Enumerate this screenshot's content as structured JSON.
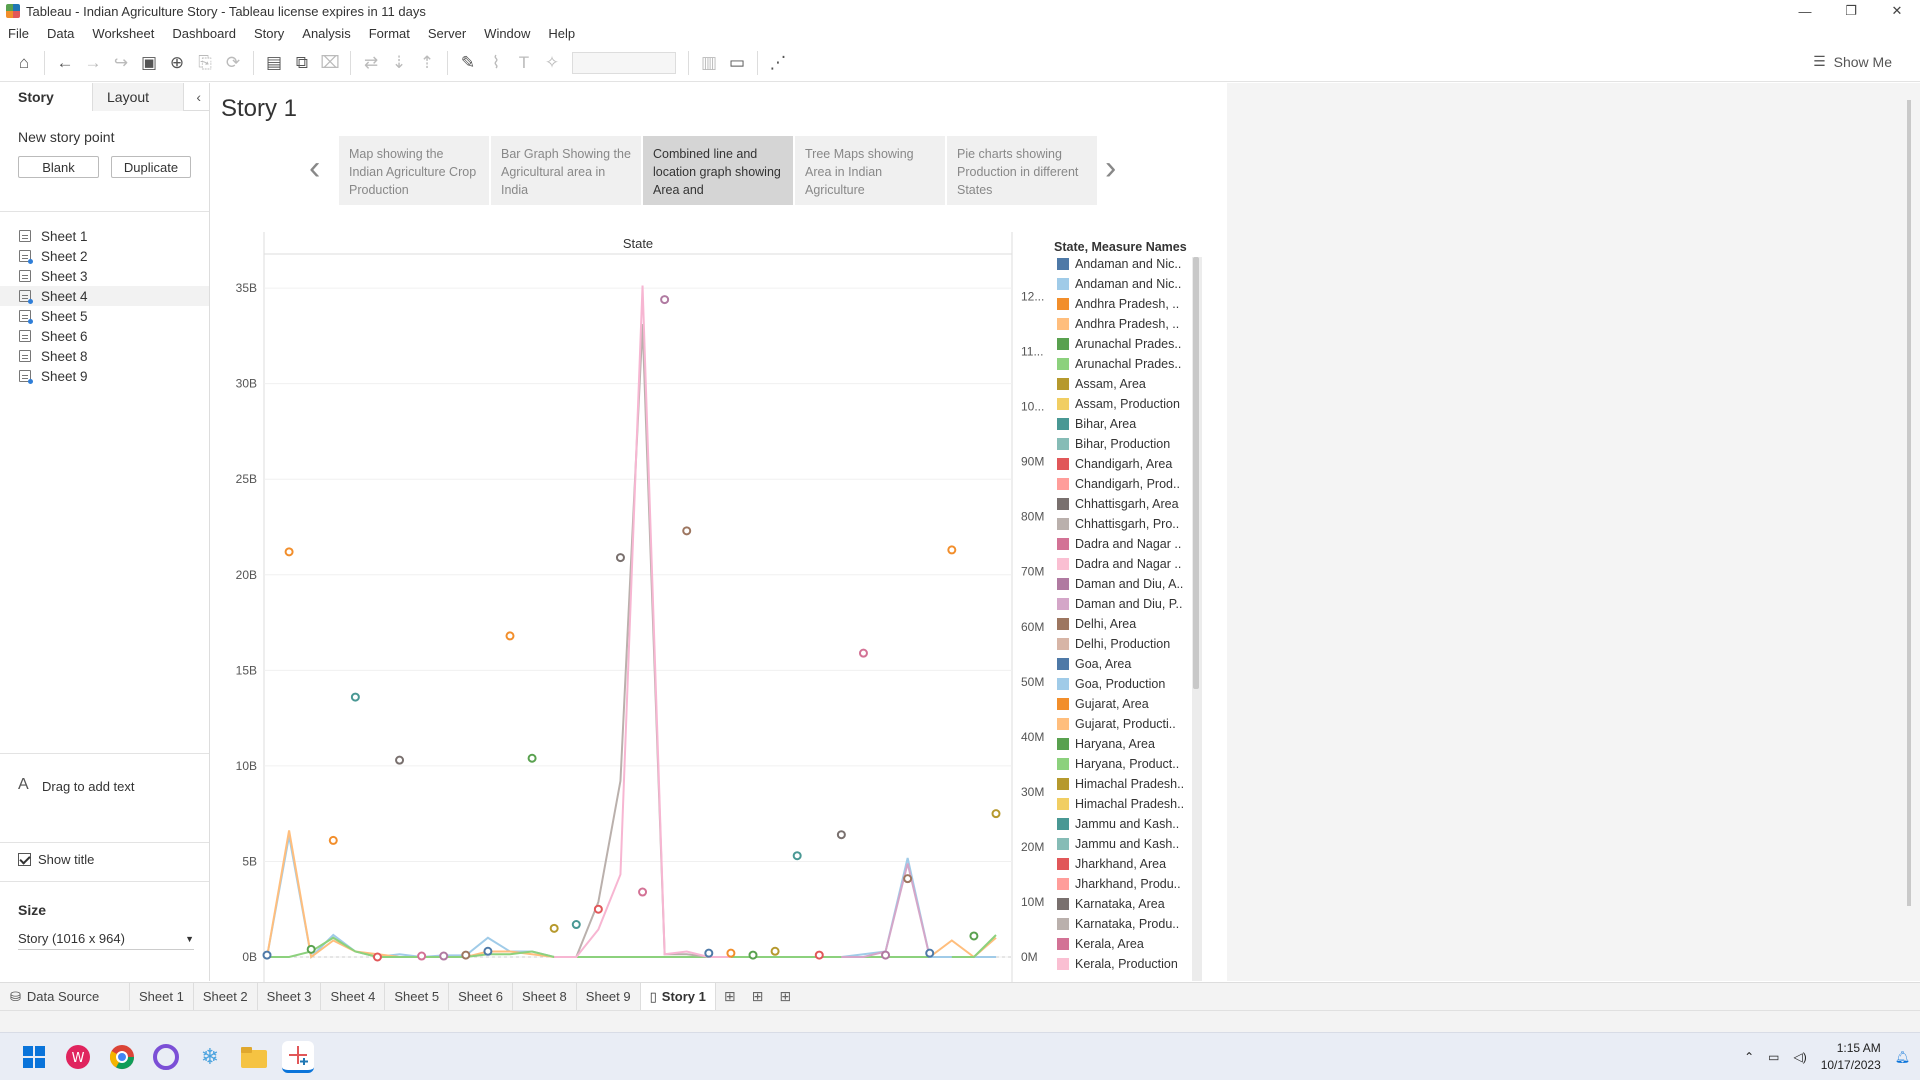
{
  "window": {
    "title": "Tableau - Indian Agriculture Story - Tableau license expires in 11 days",
    "controls": [
      "—",
      "❐",
      "✕"
    ]
  },
  "menu": [
    "File",
    "Data",
    "Worksheet",
    "Dashboard",
    "Story",
    "Analysis",
    "Format",
    "Server",
    "Window",
    "Help"
  ],
  "toolbar": {
    "show_me": "Show Me"
  },
  "left_panel": {
    "tabs": {
      "story": "Story",
      "layout": "Layout"
    },
    "new_story_point": "New story point",
    "blank": "Blank",
    "duplicate": "Duplicate",
    "sheets": [
      "Sheet 1",
      "Sheet 2",
      "Sheet 3",
      "Sheet 4",
      "Sheet 5",
      "Sheet 6",
      "Sheet 8",
      "Sheet 9"
    ],
    "drag_text": "Drag to add text",
    "show_title": "Show title",
    "size_label": "Size",
    "size_value": "Story (1016 x 964)"
  },
  "story": {
    "title": "Story 1",
    "points": [
      "Map showing the Indian Agriculture Crop Production",
      "Bar Graph Showing the Agricultural area in India",
      "Combined line and location graph showing Area and",
      "Tree Maps showing Area in Indian Agriculture",
      "Pie charts showing Production in different States"
    ],
    "active_point": 2
  },
  "chart_data": {
    "type": "line",
    "title": "State",
    "legend_title": "State, Measure Names",
    "legend_placement": "right",
    "left_axis_ticks": [
      "0B",
      "5B",
      "10B",
      "15B",
      "20B",
      "25B",
      "30B",
      "35B"
    ],
    "right_axis_ticks": [
      "0M",
      "10M",
      "20M",
      "30M",
      "40M",
      "50M",
      "60M",
      "70M",
      "80M",
      "90M",
      "10...",
      "11...",
      "12..."
    ],
    "legend": [
      {
        "label": "Andaman and Nic..",
        "color": "#4e79a7"
      },
      {
        "label": "Andaman and Nic..",
        "color": "#a0cbe8"
      },
      {
        "label": "Andhra Pradesh, ..",
        "color": "#f28e2b"
      },
      {
        "label": "Andhra Pradesh, ..",
        "color": "#ffbe7d"
      },
      {
        "label": "Arunachal Prades..",
        "color": "#59a14f"
      },
      {
        "label": "Arunachal Prades..",
        "color": "#8cd17d"
      },
      {
        "label": "Assam, Area",
        "color": "#b6992d"
      },
      {
        "label": "Assam, Production",
        "color": "#f1ce63"
      },
      {
        "label": "Bihar, Area",
        "color": "#499894"
      },
      {
        "label": "Bihar, Production",
        "color": "#86bcb6"
      },
      {
        "label": "Chandigarh, Area",
        "color": "#e15759"
      },
      {
        "label": "Chandigarh, Prod..",
        "color": "#ff9d9a"
      },
      {
        "label": "Chhattisgarh, Area",
        "color": "#79706e"
      },
      {
        "label": "Chhattisgarh, Pro..",
        "color": "#bab0ac"
      },
      {
        "label": "Dadra and Nagar ..",
        "color": "#d37295"
      },
      {
        "label": "Dadra and Nagar ..",
        "color": "#fabfd2"
      },
      {
        "label": "Daman and Diu, A..",
        "color": "#b07aa1"
      },
      {
        "label": "Daman and Diu, P..",
        "color": "#d4a6c8"
      },
      {
        "label": "Delhi, Area",
        "color": "#9d7660"
      },
      {
        "label": "Delhi, Production",
        "color": "#d7b5a6"
      },
      {
        "label": "Goa, Area",
        "color": "#4e79a7"
      },
      {
        "label": "Goa, Production",
        "color": "#a0cbe8"
      },
      {
        "label": "Gujarat, Area",
        "color": "#f28e2b"
      },
      {
        "label": "Gujarat, Producti..",
        "color": "#ffbe7d"
      },
      {
        "label": "Haryana, Area",
        "color": "#59a14f"
      },
      {
        "label": "Haryana, Product..",
        "color": "#8cd17d"
      },
      {
        "label": "Himachal Pradesh..",
        "color": "#b6992d"
      },
      {
        "label": "Himachal Pradesh..",
        "color": "#f1ce63"
      },
      {
        "label": "Jammu and Kash..",
        "color": "#499894"
      },
      {
        "label": "Jammu and Kash..",
        "color": "#86bcb6"
      },
      {
        "label": "Jharkhand, Area",
        "color": "#e15759"
      },
      {
        "label": "Jharkhand, Produ..",
        "color": "#ff9d9a"
      },
      {
        "label": "Karnataka, Area",
        "color": "#79706e"
      },
      {
        "label": "Karnataka, Produ..",
        "color": "#bab0ac"
      },
      {
        "label": "Kerala, Area",
        "color": "#d37295"
      },
      {
        "label": "Kerala, Production",
        "color": "#fabfd2"
      }
    ],
    "ylim_left_billions": [
      0,
      36
    ],
    "ylim_right_millions": [
      0,
      125
    ],
    "points": [
      {
        "x": 0,
        "yB": 0.1,
        "color": "#4e79a7"
      },
      {
        "x": 1,
        "yB": 21.2,
        "color": "#f28e2b"
      },
      {
        "x": 2,
        "yB": 0.4,
        "color": "#59a14f"
      },
      {
        "x": 3,
        "yB": 6.1,
        "color": "#f28e2b"
      },
      {
        "x": 4,
        "yB": 13.6,
        "color": "#499894"
      },
      {
        "x": 5,
        "yB": 0.0,
        "color": "#e15759"
      },
      {
        "x": 6,
        "yB": 10.3,
        "color": "#79706e"
      },
      {
        "x": 7,
        "yB": 0.05,
        "color": "#d37295"
      },
      {
        "x": 8,
        "yB": 0.05,
        "color": "#b07aa1"
      },
      {
        "x": 9,
        "yB": 0.1,
        "color": "#9d7660"
      },
      {
        "x": 10,
        "yB": 0.3,
        "color": "#4e79a7"
      },
      {
        "x": 11,
        "yB": 16.8,
        "color": "#f28e2b"
      },
      {
        "x": 12,
        "yB": 10.4,
        "color": "#59a14f"
      },
      {
        "x": 13,
        "yB": 1.5,
        "color": "#b6992d"
      },
      {
        "x": 14,
        "yB": 1.7,
        "color": "#499894"
      },
      {
        "x": 15,
        "yB": 2.5,
        "color": "#e15759"
      },
      {
        "x": 16,
        "yB": 20.9,
        "color": "#79706e"
      },
      {
        "x": 17,
        "yB": 3.4,
        "color": "#d37295"
      },
      {
        "x": 18,
        "yB": 34.4,
        "color": "#b07aa1"
      },
      {
        "x": 19,
        "yB": 22.3,
        "color": "#9d7660"
      },
      {
        "x": 20,
        "yB": 0.2,
        "color": "#4e79a7"
      },
      {
        "x": 21,
        "yB": 0.2,
        "color": "#f28e2b"
      },
      {
        "x": 22,
        "yB": 0.1,
        "color": "#59a14f"
      },
      {
        "x": 23,
        "yB": 0.3,
        "color": "#b6992d"
      },
      {
        "x": 24,
        "yB": 5.3,
        "color": "#499894"
      },
      {
        "x": 25,
        "yB": 0.1,
        "color": "#e15759"
      },
      {
        "x": 26,
        "yB": 6.4,
        "color": "#79706e"
      },
      {
        "x": 27,
        "yB": 15.9,
        "color": "#d37295"
      },
      {
        "x": 28,
        "yB": 0.1,
        "color": "#b07aa1"
      },
      {
        "x": 29,
        "yB": 4.1,
        "color": "#9d7660"
      },
      {
        "x": 30,
        "yB": 0.2,
        "color": "#4e79a7"
      },
      {
        "x": 31,
        "yB": 21.3,
        "color": "#f28e2b"
      },
      {
        "x": 32,
        "yB": 1.1,
        "color": "#59a14f"
      },
      {
        "x": 33,
        "yB": 7.5,
        "color": "#b6992d"
      }
    ],
    "lines": [
      {
        "color": "#a0cbe8",
        "x": [
          0,
          1,
          2,
          3,
          4,
          5,
          6,
          7,
          8,
          9,
          10,
          11,
          12,
          13,
          14,
          15,
          16,
          17,
          18,
          19,
          20,
          21,
          22,
          23,
          24,
          25,
          26,
          27,
          28,
          29,
          30,
          31,
          32,
          33
        ],
        "yM": [
          0,
          22,
          0,
          4,
          1,
          0,
          0.5,
          0,
          0.3,
          0.3,
          3.5,
          1,
          1,
          0,
          0,
          0,
          0,
          0,
          0,
          0,
          0,
          0,
          0,
          0,
          0,
          0,
          0,
          0,
          0,
          0,
          0,
          0,
          0,
          0
        ]
      },
      {
        "color": "#ffbe7d",
        "x": [
          0,
          1,
          2,
          3,
          4,
          5,
          6,
          7,
          8,
          9,
          10,
          11,
          12,
          13,
          14,
          15,
          16,
          17,
          18,
          19,
          20,
          21,
          22,
          23,
          24,
          25,
          26,
          27,
          28,
          29,
          30,
          31,
          32,
          33
        ],
        "yM": [
          0,
          23,
          0,
          3,
          1,
          0.5,
          0,
          0,
          0,
          0,
          1,
          1,
          0.5,
          0,
          0,
          0,
          0,
          0,
          0,
          0,
          0,
          0,
          0,
          0,
          0,
          0,
          0,
          0,
          0,
          0,
          0,
          3,
          0,
          3.5
        ]
      },
      {
        "color": "#8cd17d",
        "x": [
          0,
          1,
          2,
          3,
          4,
          5,
          6,
          7,
          8,
          9,
          10,
          11,
          12,
          13,
          14,
          15,
          16,
          17,
          18,
          19,
          20,
          21,
          22,
          23,
          24,
          25,
          26,
          27,
          28,
          29,
          30,
          31,
          32,
          33
        ],
        "yM": [
          0,
          0,
          1,
          3.5,
          1,
          0,
          0,
          0,
          0,
          0,
          0.5,
          0.5,
          1,
          0,
          0,
          0,
          0,
          0,
          0,
          0,
          0,
          0,
          0,
          0,
          0,
          0,
          0,
          0,
          0,
          0,
          0,
          0,
          0,
          4
        ]
      },
      {
        "color": "#bab0ac",
        "x": [
          13,
          14,
          15,
          16,
          17,
          18,
          19,
          20
        ],
        "yM": [
          0,
          0,
          10,
          32,
          115,
          0.5,
          0.5,
          0
        ]
      },
      {
        "color": "#f7b6d2",
        "x": [
          13,
          14,
          15,
          16,
          17,
          18,
          19,
          20,
          21
        ],
        "yM": [
          0,
          0,
          5,
          15,
          122,
          0.5,
          1,
          0,
          0
        ]
      },
      {
        "color": "#a0cbe8",
        "x": [
          26,
          27,
          28,
          29,
          30,
          31
        ],
        "yM": [
          0,
          0.5,
          1,
          18,
          0,
          0
        ]
      },
      {
        "color": "#d4a6c8",
        "x": [
          26,
          27,
          28,
          29,
          30
        ],
        "yM": [
          0,
          0,
          1,
          17,
          0
        ]
      }
    ]
  },
  "bottom_tabs": {
    "data_source": "Data Source",
    "sheets": [
      "Sheet 1",
      "Sheet 2",
      "Sheet 3",
      "Sheet 4",
      "Sheet 5",
      "Sheet 6",
      "Sheet 8",
      "Sheet 9"
    ],
    "story": "Story 1"
  },
  "taskbar": {
    "time": "1:15 AM",
    "date": "10/17/2023"
  }
}
